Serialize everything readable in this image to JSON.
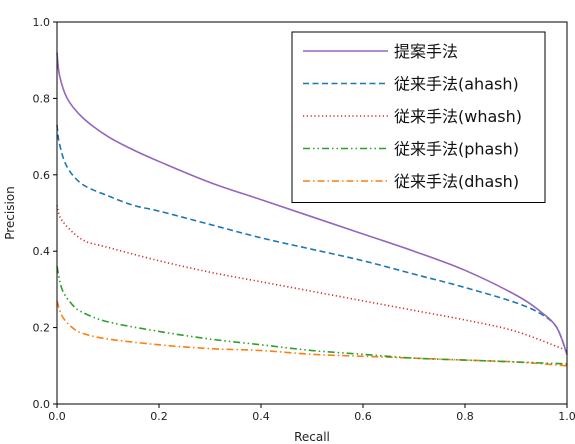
{
  "chart_data": {
    "type": "line",
    "xlabel": "Recall",
    "ylabel": "Precision",
    "xlim": [
      0.0,
      1.0
    ],
    "ylim": [
      0.0,
      1.0
    ],
    "xticks": [
      "0.0",
      "0.2",
      "0.4",
      "0.6",
      "0.8",
      "1.0"
    ],
    "yticks": [
      "0.0",
      "0.2",
      "0.4",
      "0.6",
      "0.8",
      "1.0"
    ],
    "grid": false,
    "legend_position": "top-right",
    "series": [
      {
        "name": "提案手法",
        "color": "#9467bd",
        "style": "solid",
        "x": [
          0.0,
          0.005,
          0.02,
          0.05,
          0.1,
          0.15,
          0.2,
          0.3,
          0.4,
          0.5,
          0.6,
          0.7,
          0.8,
          0.9,
          0.95,
          0.98,
          1.0
        ],
        "y": [
          0.92,
          0.86,
          0.8,
          0.75,
          0.7,
          0.665,
          0.635,
          0.58,
          0.535,
          0.49,
          0.445,
          0.4,
          0.35,
          0.285,
          0.24,
          0.2,
          0.13
        ]
      },
      {
        "name": "従来手法(ahash)",
        "color": "#1f77b4",
        "style": "dashed",
        "x": [
          0.0,
          0.005,
          0.02,
          0.05,
          0.1,
          0.15,
          0.2,
          0.3,
          0.4,
          0.5,
          0.6,
          0.7,
          0.8,
          0.9,
          0.95,
          0.98,
          1.0
        ],
        "y": [
          0.73,
          0.68,
          0.62,
          0.575,
          0.545,
          0.52,
          0.505,
          0.47,
          0.435,
          0.405,
          0.375,
          0.34,
          0.305,
          0.265,
          0.235,
          0.2,
          0.13
        ]
      },
      {
        "name": "従来手法(whash)",
        "color": "#d62728",
        "style": "dotted",
        "x": [
          0.0,
          0.01,
          0.05,
          0.1,
          0.2,
          0.3,
          0.4,
          0.5,
          0.6,
          0.7,
          0.8,
          0.9,
          1.0
        ],
        "y": [
          0.52,
          0.48,
          0.43,
          0.41,
          0.375,
          0.345,
          0.32,
          0.295,
          0.27,
          0.245,
          0.22,
          0.19,
          0.14
        ]
      },
      {
        "name": "従来手法(phash)",
        "color": "#2ca02c",
        "style": "dashdotdot",
        "x": [
          0.0,
          0.01,
          0.03,
          0.05,
          0.1,
          0.2,
          0.3,
          0.4,
          0.5,
          0.6,
          0.7,
          0.8,
          0.9,
          1.0
        ],
        "y": [
          0.36,
          0.3,
          0.26,
          0.24,
          0.215,
          0.19,
          0.17,
          0.155,
          0.14,
          0.13,
          0.12,
          0.115,
          0.11,
          0.105
        ]
      },
      {
        "name": "従来手法(dhash)",
        "color": "#ff7f0e",
        "style": "dashdot",
        "x": [
          0.0,
          0.01,
          0.03,
          0.05,
          0.1,
          0.2,
          0.3,
          0.4,
          0.5,
          0.6,
          0.7,
          0.8,
          0.9,
          1.0
        ],
        "y": [
          0.27,
          0.23,
          0.2,
          0.185,
          0.17,
          0.155,
          0.145,
          0.14,
          0.13,
          0.125,
          0.12,
          0.115,
          0.11,
          0.1
        ]
      }
    ]
  }
}
